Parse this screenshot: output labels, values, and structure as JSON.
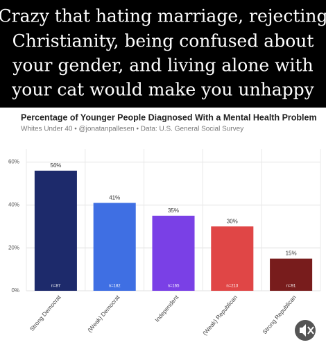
{
  "caption": [
    "Crazy that hating marriage, rejecting",
    "Christianity, being confused about",
    "your gender, and living alone with",
    "your cat would make you unhappy"
  ],
  "chart_data": {
    "type": "bar",
    "title": "Percentage of Younger People Diagnosed With a Mental Health Problem",
    "subtitle": "Whites Under 40 • @jonatanpallesen • Data: U.S. General Social Survey",
    "categories": [
      "Strong Democrat",
      "(Weak) Democrat",
      "Independent",
      "(Weak) Republican",
      "Strong Republican"
    ],
    "values": [
      56,
      41,
      35,
      30,
      15
    ],
    "value_labels": [
      "56%",
      "41%",
      "35%",
      "30%",
      "15%"
    ],
    "sample_labels": [
      "n=87",
      "n=182",
      "n=165",
      "n=213",
      "n=91"
    ],
    "colors": [
      "#1d2a6b",
      "#3f6fe3",
      "#7a40e6",
      "#e04646",
      "#781c1c"
    ],
    "ylim": [
      0,
      66
    ],
    "yticks": [
      {
        "value": 0,
        "label": "0%"
      },
      {
        "value": 20,
        "label": "20%"
      },
      {
        "value": 40,
        "label": "40%"
      },
      {
        "value": 60,
        "label": "60%"
      }
    ],
    "grid": true
  }
}
